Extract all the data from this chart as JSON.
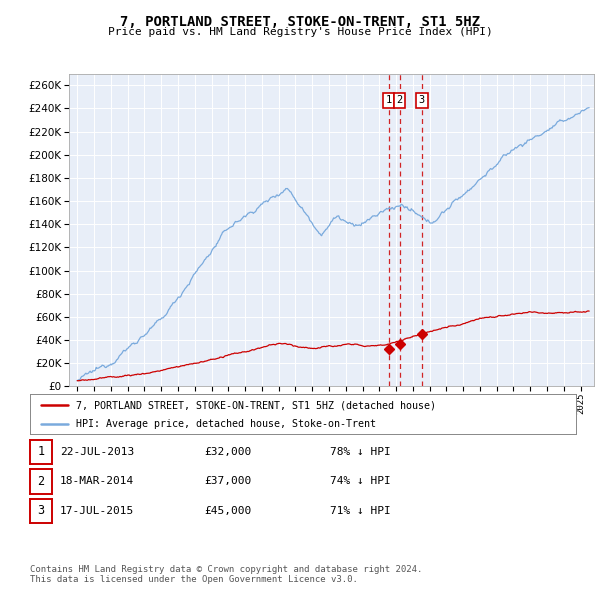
{
  "title": "7, PORTLAND STREET, STOKE-ON-TRENT, ST1 5HZ",
  "subtitle": "Price paid vs. HM Land Registry's House Price Index (HPI)",
  "ylim": [
    0,
    270000
  ],
  "yticks": [
    0,
    20000,
    40000,
    60000,
    80000,
    100000,
    120000,
    140000,
    160000,
    180000,
    200000,
    220000,
    240000,
    260000
  ],
  "background_color": "#ffffff",
  "plot_bg_color": "#e8eef8",
  "grid_color": "#ffffff",
  "hpi_color": "#7aaadd",
  "price_color": "#cc0000",
  "dashed_line_color": "#cc0000",
  "xlim_left": 1994.5,
  "xlim_right": 2025.8,
  "sale_points": [
    {
      "date_num": 2013.55,
      "price": 32000,
      "label": "1"
    },
    {
      "date_num": 2014.21,
      "price": 37000,
      "label": "2"
    },
    {
      "date_num": 2015.54,
      "price": 45000,
      "label": "3"
    }
  ],
  "legend_entries": [
    "7, PORTLAND STREET, STOKE-ON-TRENT, ST1 5HZ (detached house)",
    "HPI: Average price, detached house, Stoke-on-Trent"
  ],
  "table_data": [
    {
      "num": "1",
      "date": "22-JUL-2013",
      "price": "£32,000",
      "hpi": "78% ↓ HPI"
    },
    {
      "num": "2",
      "date": "18-MAR-2014",
      "price": "£37,000",
      "hpi": "74% ↓ HPI"
    },
    {
      "num": "3",
      "date": "17-JUL-2015",
      "price": "£45,000",
      "hpi": "71% ↓ HPI"
    }
  ],
  "footnote1": "Contains HM Land Registry data © Crown copyright and database right 2024.",
  "footnote2": "This data is licensed under the Open Government Licence v3.0."
}
